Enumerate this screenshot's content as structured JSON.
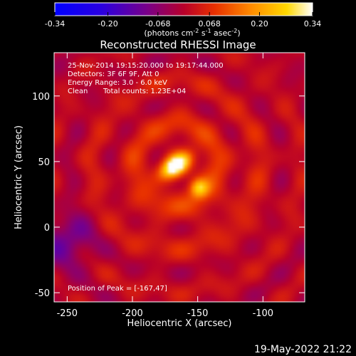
{
  "chart_data": {
    "type": "heatmap",
    "title": "Reconstructed RHESSI Image",
    "xlabel": "Heliocentric X (arcsec)",
    "ylabel": "Heliocentric Y (arcsec)",
    "xlim": [
      -260,
      -68
    ],
    "ylim": [
      -57,
      133
    ],
    "x_ticks": [
      -250,
      -200,
      -150,
      -100
    ],
    "y_ticks": [
      -50,
      0,
      50,
      100
    ],
    "colorbar": {
      "min": -0.34,
      "max": 0.34,
      "colormap": "black-blue-purple-red-orange-yellow-white",
      "tick_values": [
        -0.34,
        -0.2,
        -0.068,
        0.068,
        0.2,
        0.34
      ],
      "tick_labels": [
        "-0.34",
        "-0.20",
        "-0.068",
        "0.068",
        "0.20",
        "0.34"
      ],
      "units_parts": [
        "(photons cm",
        "-2",
        " s",
        "-1",
        " asec",
        "-2",
        ")"
      ]
    },
    "annotations": {
      "time_range": "25-Nov-2014 19:15:20.000 to 19:17:44.000",
      "detectors": "Detectors: 3F 6F 9F, Att 0",
      "energy": "Energy Range: 3.0 - 6.0 keV",
      "clean_label": "Clean",
      "counts": "Total counts: 1.23E+04",
      "peak": "Position of Peak = [-167,47]"
    },
    "sources": [
      {
        "x": -167,
        "y": 47,
        "amplitude": 0.34
      },
      {
        "x": -149,
        "y": 30,
        "amplitude": 0.22
      }
    ],
    "grid": false
  },
  "footer": {
    "timestamp": "19-May-2022 21:22"
  }
}
